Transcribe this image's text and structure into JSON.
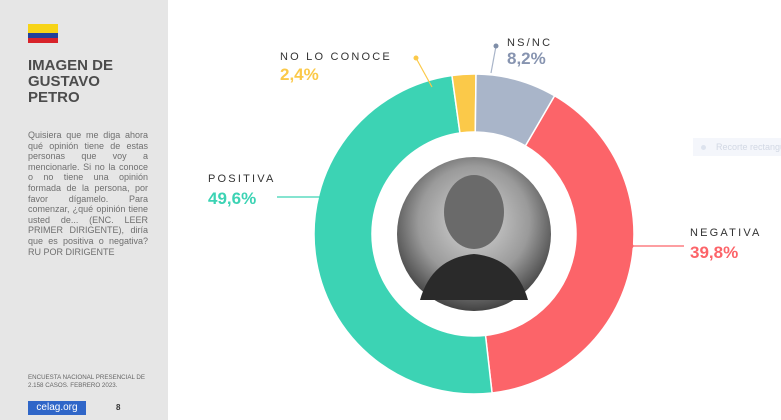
{
  "sidebar": {
    "title": "IMAGEN DE GUSTAVO PETRO",
    "question": "Quisiera que me diga ahora qué opinión tiene de estas personas que voy a mencionarle. Si no la conoce o no tiene una opinión formada de la persona, por favor dígamelo. Para comenzar, ¿qué opinión tiene usted de... (ENC. LEER PRIMER DIRIGENTE), diría que es positiva o negativa? RU POR DIRIGENTE",
    "source": "ENCUESTA NACIONAL PRESENCIAL DE 2.158 CASOS. FEBRERO 2023.",
    "logo_text": "celag.org",
    "page_number": "8"
  },
  "flag_colors": {
    "yellow": "#f7d417",
    "blue": "#21409a",
    "red": "#d8232a"
  },
  "ghost_button": "Recorte rectangular",
  "chart_data": {
    "type": "pie",
    "donut": true,
    "center_image": "portrait photo",
    "slices": [
      {
        "label": "NEGATIVA",
        "display": "39,8%",
        "value": 39.8,
        "color": "#fc6469"
      },
      {
        "label": "POSITIVA",
        "display": "49,6%",
        "value": 49.6,
        "color": "#3cd3b4"
      },
      {
        "label": "NO LO CONOCE",
        "display": "2,4%",
        "value": 2.4,
        "color": "#fbc949"
      },
      {
        "label": "NS/NC",
        "display": "8,2%",
        "value": 8.2,
        "color": "#a9b5c9"
      }
    ]
  }
}
